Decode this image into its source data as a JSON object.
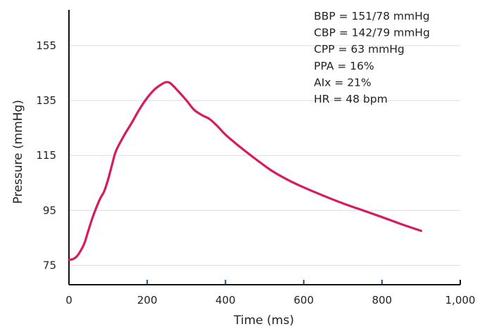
{
  "chart_data": {
    "type": "line",
    "xlabel": "Time (ms)",
    "ylabel": "Pressure (mmHg)",
    "xlim": [
      0,
      1000
    ],
    "ylim": [
      68,
      168
    ],
    "x_ticks": [
      0,
      200,
      400,
      600,
      800,
      1000
    ],
    "x_tick_labels": [
      "0",
      "200",
      "400",
      "600",
      "800",
      "1,000"
    ],
    "y_ticks": [
      75,
      95,
      115,
      135,
      155
    ],
    "y_tick_labels": [
      "75",
      "95",
      "115",
      "135",
      "155"
    ],
    "grid": "horizontal",
    "colors": {
      "line": "#d81b60",
      "grid": "#dcdcdc",
      "axis": "#111111",
      "tick": "#1f4e79"
    },
    "annotations": [
      "BBP = 151/78 mmHg",
      "CBP = 142/79 mmHg",
      "CPP = 63 mmHg",
      "PPA = 16%",
      "AIx = 21%",
      "HR = 48 bpm"
    ],
    "series": [
      {
        "x": [
          0,
          10,
          20,
          30,
          40,
          50,
          60,
          70,
          80,
          90,
          100,
          110,
          120,
          140,
          160,
          180,
          200,
          220,
          240,
          250,
          260,
          280,
          300,
          320,
          340,
          360,
          380,
          400,
          440,
          480,
          520,
          560,
          600,
          650,
          700,
          750,
          800,
          850,
          900
        ],
        "values": [
          77.1,
          77.3,
          78.3,
          80.4,
          83.3,
          87.9,
          92.3,
          96.1,
          99.4,
          102.0,
          106.3,
          111.6,
          116.6,
          122.1,
          126.8,
          131.8,
          136.0,
          139.2,
          141.2,
          141.7,
          141.2,
          138.3,
          135.1,
          131.6,
          129.7,
          128.2,
          125.6,
          122.6,
          117.8,
          113.4,
          109.3,
          106.1,
          103.4,
          100.4,
          97.6,
          95.1,
          92.6,
          90.0,
          87.6
        ]
      }
    ]
  }
}
